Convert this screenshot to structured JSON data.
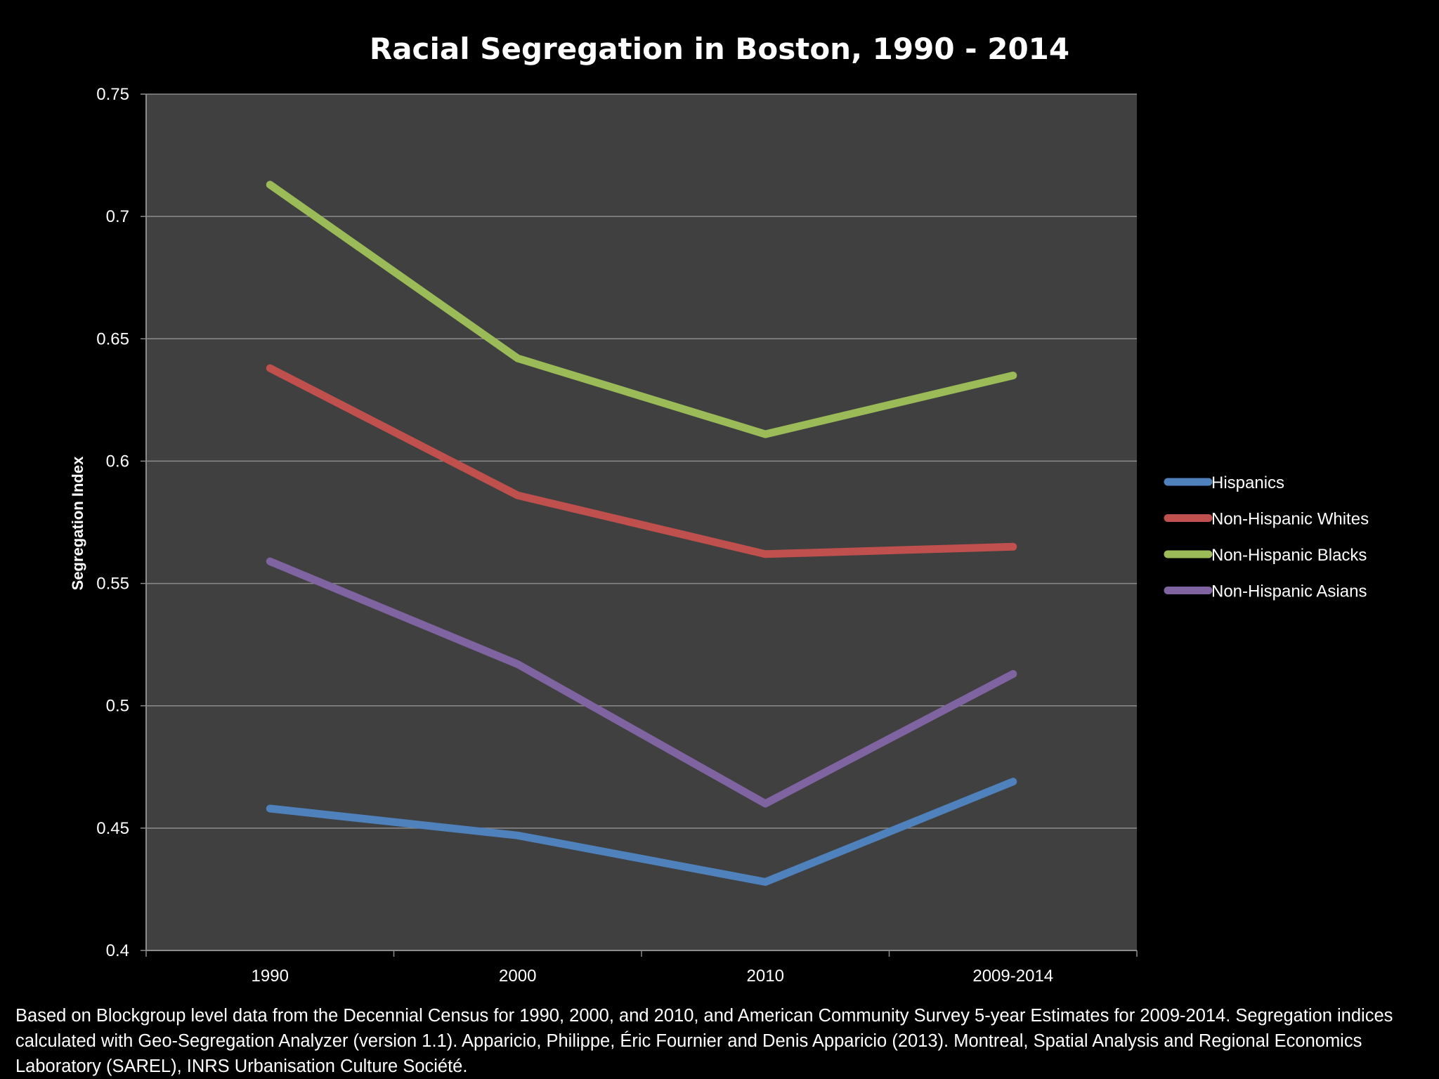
{
  "chart_data": {
    "type": "line",
    "title": "Racial Segregation in Boston, 1990 - 2014",
    "xlabel": "",
    "ylabel": "Segregation Index",
    "categories": [
      "1990",
      "2000",
      "2010",
      "2009-2014"
    ],
    "ylim": [
      0.4,
      0.75
    ],
    "yticks": [
      "0.4",
      "0.45",
      "0.5",
      "0.55",
      "0.6",
      "0.65",
      "0.7",
      "0.75"
    ],
    "grid": true,
    "legend_position": "right",
    "series": [
      {
        "name": "Hispanics",
        "color": "#4f81bd",
        "values": [
          0.458,
          0.447,
          0.428,
          0.469
        ]
      },
      {
        "name": "Non-Hispanic Whites",
        "color": "#c0504d",
        "values": [
          0.638,
          0.586,
          0.562,
          0.565
        ]
      },
      {
        "name": "Non-Hispanic Blacks",
        "color": "#9bbb59",
        "values": [
          0.713,
          0.642,
          0.611,
          0.635
        ]
      },
      {
        "name": "Non-Hispanic Asians",
        "color": "#8064a2",
        "values": [
          0.559,
          0.517,
          0.46,
          0.513
        ]
      }
    ]
  },
  "footnote": "Based on Blockgroup level data from the Decennial Census for 1990, 2000, and 2010, and American Community Survey 5-year Estimates for 2009-2014.  Segregation indices calculated with Geo-Segregation Analyzer (version 1.1).  Apparicio, Philippe, Éric Fournier and Denis Apparicio (2013).  Montreal, Spatial Analysis and Regional Economics Laboratory (SAREL), INRS Urbanisation Culture Société.",
  "colors": {
    "background": "#000000",
    "plot_area": "#404040",
    "gridline": "#8c8c8c",
    "text": "#ffffff"
  }
}
